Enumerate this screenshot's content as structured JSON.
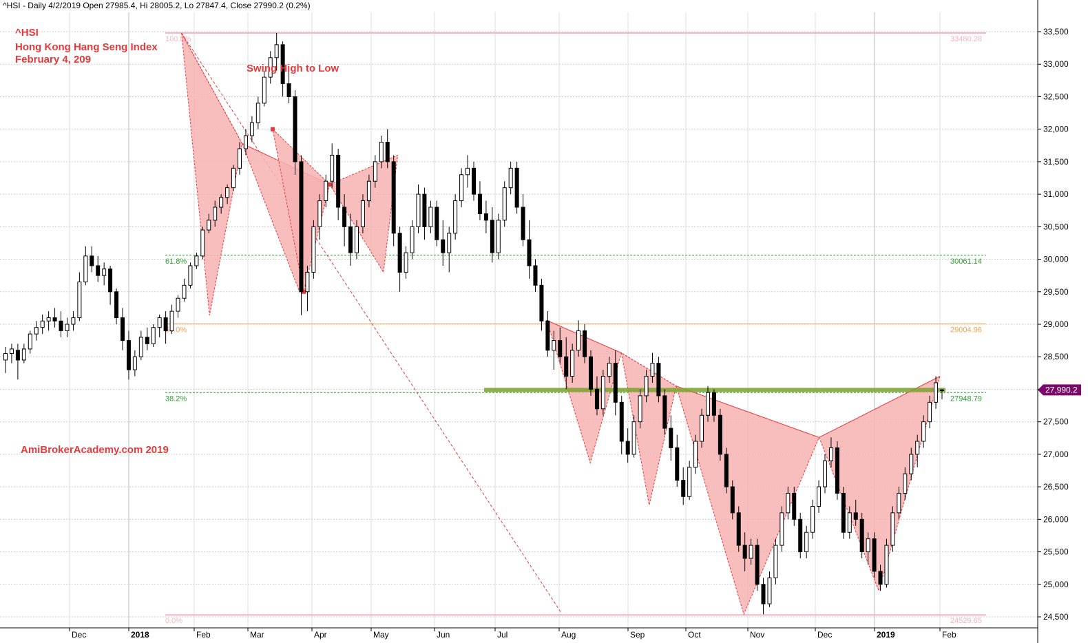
{
  "header": "^HSI - Daily 4/2/2019 Open 27985.4, Hi 28005.2, Lo 27847.4, Close 27990.2 (0.2%)",
  "titles": {
    "line1": "^HSI",
    "line2": "Hong Kong Hang Seng Index",
    "line3": "February 4, 209",
    "pattern": "Swing High to Low",
    "watermark": "AmiBrokerAcademy.com  2019"
  },
  "chart_data": {
    "type": "candlestick",
    "ylim": [
      24400,
      33700
    ],
    "y_ticks": [
      24500,
      25000,
      25500,
      26000,
      26500,
      27000,
      27500,
      28000,
      28500,
      29000,
      29500,
      30000,
      30500,
      31000,
      31500,
      32000,
      32500,
      33000,
      33500
    ],
    "y_tick_labels": [
      "24,500",
      "25,000",
      "25,500",
      "26,000",
      "26,500",
      "27,000",
      "27,500",
      "28,000",
      "28,500",
      "29,000",
      "29,500",
      "30,000",
      "30,500",
      "31,000",
      "31,500",
      "32,000",
      "32,500",
      "33,000",
      "33,500"
    ],
    "x_labels": [
      "Dec",
      "2018",
      "Feb",
      "Mar",
      "Apr",
      "May",
      "Jun",
      "Jul",
      "Aug",
      "Sep",
      "Oct",
      "Nov",
      "Dec",
      "2019",
      "Feb"
    ],
    "last_close_label": "27,990.2",
    "last_close_value": 27990.2,
    "colors": {
      "up": "#ffffff",
      "down": "#000000",
      "pattern_fill": "#f7b2b2",
      "pattern_line": "#e8393a",
      "fib_green": "#2e9e2e",
      "fib_orange": "#f0a050",
      "fib_pink": "#f4b3c2",
      "support_band": "#7aa22a",
      "badge": "#7b0a6a"
    },
    "fibonacci": [
      {
        "label": "100.0%",
        "value_label": "33480.28",
        "value": 33480.28,
        "color": "pink"
      },
      {
        "label": "61.8%",
        "value_label": "30061.14",
        "value": 30061.14,
        "color": "green"
      },
      {
        "label": "50.0%",
        "value_label": "29004.96",
        "value": 29004.96,
        "color": "orange"
      },
      {
        "label": "38.2%",
        "value_label": "27948.79",
        "value": 27948.79,
        "color": "green"
      },
      {
        "label": "0.0%",
        "value_label": "24529.65",
        "value": 24529.65,
        "color": "pink"
      }
    ],
    "support_level": 27990,
    "pattern_1": [
      {
        "date": "2018-01-26",
        "value": 33480
      },
      {
        "date": "2018-02-09",
        "value": 29140
      },
      {
        "date": "2018-02-26",
        "value": 31780
      },
      {
        "date": "2018-03-26",
        "value": 29500
      },
      {
        "date": "2018-04-10",
        "value": 31150
      }
    ],
    "pattern_1_apex": {
      "date": "2018-03-13",
      "value": 32000
    },
    "pattern_2": [
      {
        "date": "2018-03-13",
        "value": 32000
      },
      {
        "date": "2018-04-10",
        "value": 31150
      },
      {
        "date": "2018-05-07",
        "value": 29800
      },
      {
        "date": "2018-05-14",
        "value": 31600
      }
    ],
    "pattern_3": [
      {
        "date": "2018-07-26",
        "value": 29060
      },
      {
        "date": "2018-08-15",
        "value": 26870
      },
      {
        "date": "2018-08-29",
        "value": 28560
      },
      {
        "date": "2018-09-12",
        "value": 26220
      },
      {
        "date": "2018-09-26",
        "value": 28050
      }
    ],
    "pattern_4": [
      {
        "date": "2018-09-26",
        "value": 28050
      },
      {
        "date": "2018-10-30",
        "value": 24540
      },
      {
        "date": "2018-12-03",
        "value": 27260
      },
      {
        "date": "2019-01-03",
        "value": 24900
      },
      {
        "date": "2019-02-01",
        "value": 28200
      }
    ],
    "trend_line": [
      {
        "date": "2018-01-26",
        "value": 33480
      },
      {
        "date": "2018-08-02",
        "value": 24560
      }
    ],
    "candles": [
      [
        28450,
        28650,
        28250,
        28550
      ],
      [
        28550,
        28700,
        28400,
        28620
      ],
      [
        28600,
        28700,
        28150,
        28450
      ],
      [
        28450,
        28700,
        28400,
        28620
      ],
      [
        28620,
        28900,
        28550,
        28850
      ],
      [
        28850,
        29050,
        28750,
        28950
      ],
      [
        28950,
        29150,
        28850,
        29050
      ],
      [
        29050,
        29200,
        28900,
        29100
      ],
      [
        29100,
        29250,
        28950,
        29050
      ],
      [
        29050,
        29200,
        28800,
        28900
      ],
      [
        28900,
        29100,
        28800,
        29000
      ],
      [
        29000,
        29200,
        28900,
        29100
      ],
      [
        29100,
        29800,
        29050,
        29650
      ],
      [
        29650,
        30200,
        29600,
        30050
      ],
      [
        30050,
        30200,
        29800,
        29900
      ],
      [
        29900,
        30050,
        29650,
        29750
      ],
      [
        29750,
        29950,
        29600,
        29850
      ],
      [
        29850,
        29900,
        29300,
        29500
      ],
      [
        29500,
        29550,
        29000,
        29100
      ],
      [
        29100,
        29250,
        28600,
        28750
      ],
      [
        28750,
        28900,
        28150,
        28300
      ],
      [
        28300,
        28600,
        28200,
        28500
      ],
      [
        28500,
        28900,
        28450,
        28800
      ],
      [
        28800,
        28950,
        28600,
        28700
      ],
      [
        28700,
        29000,
        28650,
        28950
      ],
      [
        28950,
        29150,
        28800,
        29100
      ],
      [
        29100,
        29200,
        28700,
        28900
      ],
      [
        28900,
        29300,
        28850,
        29200
      ],
      [
        29200,
        29450,
        29100,
        29400
      ],
      [
        29400,
        29700,
        29350,
        29600
      ],
      [
        29600,
        29950,
        29550,
        29900
      ],
      [
        29900,
        30100,
        29850,
        30050
      ],
      [
        30050,
        30500,
        30000,
        30450
      ],
      [
        30450,
        30700,
        30400,
        30600
      ],
      [
        30600,
        30900,
        30500,
        30800
      ],
      [
        30800,
        31000,
        30700,
        30950
      ],
      [
        30950,
        31150,
        30850,
        31100
      ],
      [
        31100,
        31450,
        31050,
        31400
      ],
      [
        31400,
        31800,
        31300,
        31700
      ],
      [
        31700,
        32000,
        31600,
        31900
      ],
      [
        31900,
        32200,
        31800,
        32100
      ],
      [
        32100,
        32500,
        32000,
        32400
      ],
      [
        32400,
        32900,
        32350,
        32800
      ],
      [
        32800,
        33200,
        32700,
        33100
      ],
      [
        33100,
        33480,
        32900,
        33300
      ],
      [
        33300,
        33350,
        32500,
        32700
      ],
      [
        32700,
        32900,
        32400,
        32500
      ],
      [
        32500,
        32600,
        31300,
        31500
      ],
      [
        31500,
        31600,
        29140,
        29500
      ],
      [
        29500,
        29900,
        29200,
        29800
      ],
      [
        29800,
        30600,
        29700,
        30500
      ],
      [
        30500,
        31000,
        30300,
        30900
      ],
      [
        30900,
        31300,
        30800,
        31200
      ],
      [
        31200,
        31780,
        31100,
        31600
      ],
      [
        31600,
        31700,
        30600,
        30800
      ],
      [
        30800,
        31000,
        30200,
        30500
      ],
      [
        30500,
        30700,
        29900,
        30100
      ],
      [
        30100,
        30600,
        30000,
        30500
      ],
      [
        30500,
        31000,
        30400,
        30900
      ],
      [
        30900,
        31300,
        30800,
        31200
      ],
      [
        31200,
        31600,
        31100,
        31500
      ],
      [
        31500,
        31900,
        31400,
        31800
      ],
      [
        31800,
        32000,
        31400,
        31500
      ],
      [
        31500,
        31600,
        30200,
        30400
      ],
      [
        30400,
        30500,
        29500,
        29800
      ],
      [
        29800,
        30200,
        29700,
        30100
      ],
      [
        30100,
        30600,
        30000,
        30500
      ],
      [
        30500,
        31150,
        30400,
        31000
      ],
      [
        31000,
        31100,
        30300,
        30500
      ],
      [
        30500,
        30900,
        30400,
        30800
      ],
      [
        30800,
        30900,
        30200,
        30300
      ],
      [
        30300,
        30600,
        29900,
        30100
      ],
      [
        30100,
        30500,
        29800,
        30400
      ],
      [
        30400,
        31000,
        30300,
        30900
      ],
      [
        30900,
        31400,
        30800,
        31300
      ],
      [
        31300,
        31600,
        31100,
        31400
      ],
      [
        31400,
        31500,
        30900,
        31000
      ],
      [
        31000,
        31200,
        30600,
        30700
      ],
      [
        30700,
        30900,
        30400,
        30600
      ],
      [
        30600,
        30800,
        29950,
        30100
      ],
      [
        30100,
        30700,
        30000,
        30600
      ],
      [
        30600,
        31200,
        30500,
        31100
      ],
      [
        31100,
        31500,
        31000,
        31400
      ],
      [
        31400,
        31500,
        30700,
        30800
      ],
      [
        30800,
        31000,
        30200,
        30300
      ],
      [
        30300,
        30600,
        29700,
        29900
      ],
      [
        29900,
        30000,
        29500,
        29600
      ],
      [
        29600,
        29700,
        28900,
        29050
      ],
      [
        29050,
        29200,
        28500,
        28600
      ],
      [
        28600,
        28900,
        28300,
        28750
      ],
      [
        28750,
        28950,
        28400,
        28500
      ],
      [
        28500,
        28800,
        28000,
        28200
      ],
      [
        28200,
        28700,
        28100,
        28600
      ],
      [
        28600,
        29060,
        28500,
        28900
      ],
      [
        28900,
        29000,
        28400,
        28500
      ],
      [
        28500,
        28600,
        27900,
        28000
      ],
      [
        28000,
        28200,
        27600,
        27700
      ],
      [
        27700,
        28300,
        27600,
        28200
      ],
      [
        28200,
        28500,
        28100,
        28400
      ],
      [
        28400,
        28600,
        27600,
        27800
      ],
      [
        27800,
        27900,
        27000,
        27200
      ],
      [
        27200,
        27400,
        26870,
        27000
      ],
      [
        27000,
        27600,
        26950,
        27500
      ],
      [
        27500,
        28000,
        27400,
        27900
      ],
      [
        27900,
        28300,
        27800,
        28200
      ],
      [
        28200,
        28560,
        28100,
        28400
      ],
      [
        28400,
        28500,
        27800,
        27900
      ],
      [
        27900,
        28000,
        27300,
        27400
      ],
      [
        27400,
        27600,
        26900,
        27100
      ],
      [
        27100,
        27300,
        26500,
        26600
      ],
      [
        26600,
        26800,
        26220,
        26350
      ],
      [
        26350,
        26900,
        26300,
        26800
      ],
      [
        26800,
        27300,
        26700,
        27200
      ],
      [
        27200,
        27700,
        27100,
        27600
      ],
      [
        27600,
        28050,
        27500,
        27950
      ],
      [
        27950,
        28000,
        27500,
        27600
      ],
      [
        27600,
        27700,
        26900,
        27000
      ],
      [
        27000,
        27100,
        26400,
        26500
      ],
      [
        26500,
        26600,
        26000,
        26100
      ],
      [
        26100,
        26200,
        25500,
        25600
      ],
      [
        25600,
        25800,
        25200,
        25400
      ],
      [
        25400,
        25700,
        25300,
        25600
      ],
      [
        25600,
        25700,
        24900,
        25000
      ],
      [
        25000,
        25100,
        24540,
        24700
      ],
      [
        24700,
        25200,
        24650,
        25100
      ],
      [
        25100,
        25700,
        25000,
        25600
      ],
      [
        25600,
        26200,
        25500,
        26100
      ],
      [
        26100,
        26500,
        26000,
        26400
      ],
      [
        26400,
        26500,
        25900,
        26000
      ],
      [
        26000,
        26100,
        25400,
        25500
      ],
      [
        25500,
        25900,
        25400,
        25800
      ],
      [
        25800,
        26300,
        25700,
        26200
      ],
      [
        26200,
        26600,
        26100,
        26500
      ],
      [
        26500,
        27000,
        26400,
        26900
      ],
      [
        26900,
        27260,
        26800,
        27100
      ],
      [
        27100,
        27200,
        26300,
        26400
      ],
      [
        26400,
        26500,
        25700,
        25800
      ],
      [
        25800,
        26200,
        25700,
        26100
      ],
      [
        26100,
        26300,
        25900,
        26000
      ],
      [
        26000,
        26100,
        25400,
        25500
      ],
      [
        25500,
        25800,
        25300,
        25700
      ],
      [
        25700,
        25800,
        25100,
        25200
      ],
      [
        25200,
        25300,
        24900,
        25000
      ],
      [
        25000,
        25700,
        24950,
        25600
      ],
      [
        25600,
        26200,
        25500,
        26100
      ],
      [
        26100,
        26500,
        26000,
        26400
      ],
      [
        26400,
        26800,
        26300,
        26700
      ],
      [
        26700,
        27100,
        26600,
        27000
      ],
      [
        27000,
        27300,
        26800,
        27200
      ],
      [
        27200,
        27600,
        27100,
        27500
      ],
      [
        27500,
        27900,
        27400,
        27800
      ],
      [
        27800,
        28200,
        27700,
        28100
      ],
      [
        27985,
        28005,
        27847,
        27990
      ]
    ]
  }
}
